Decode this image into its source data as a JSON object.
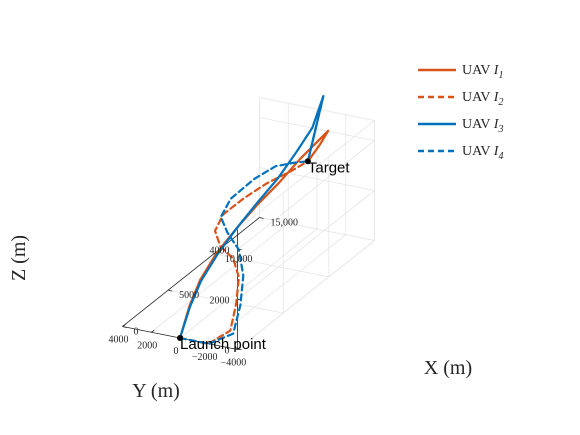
{
  "chart_data": {
    "type": "line",
    "subtype": "3d-trajectory",
    "xlabel": "X (m)",
    "ylabel": "Y (m)",
    "zlabel": "Z (m)",
    "x_ticks": [
      "0",
      "5000",
      "10,000",
      "15,000"
    ],
    "y_ticks": [
      "−4000",
      "−2000",
      "0",
      "2000",
      "4000"
    ],
    "z_ticks": [
      "0",
      "2000",
      "4000"
    ],
    "xlim": [
      0,
      15000
    ],
    "ylim": [
      -4000,
      4000
    ],
    "zlim": [
      0,
      4800
    ],
    "grid": true,
    "legend_position": "top-right",
    "annotations": [
      {
        "label": "Launch point",
        "x": 0,
        "y": 0,
        "z": 0
      },
      {
        "label": "Target",
        "x": 14000,
        "y": 0,
        "z": 3000
      }
    ],
    "series": [
      {
        "name": "UAV I1",
        "name_base": "UAV ",
        "name_var": "I",
        "name_sub": "1",
        "color": "#D95319",
        "dash": "solid",
        "points": [
          [
            0,
            0,
            0
          ],
          [
            1500,
            300,
            800
          ],
          [
            3000,
            500,
            1400
          ],
          [
            5000,
            600,
            1900
          ],
          [
            7000,
            500,
            2300
          ],
          [
            9000,
            300,
            2700
          ],
          [
            11000,
            100,
            3000
          ],
          [
            13000,
            -100,
            3400
          ],
          [
            15600,
            -400,
            3800
          ],
          [
            15000,
            -200,
            3400
          ],
          [
            14000,
            0,
            3000
          ]
        ]
      },
      {
        "name": "UAV I2",
        "name_base": "UAV ",
        "name_var": "I",
        "name_sub": "2",
        "color": "#D95319",
        "dash": "dashed",
        "points": [
          [
            0,
            0,
            0
          ],
          [
            0,
            -2000,
            0
          ],
          [
            0,
            -3500,
            700
          ],
          [
            0,
            -3900,
            1800
          ],
          [
            0,
            -4100,
            2900
          ],
          [
            0,
            -3700,
            3600
          ],
          [
            0,
            -2800,
            4000
          ],
          [
            1000,
            -1800,
            4200
          ],
          [
            3000,
            -1100,
            4200
          ],
          [
            6000,
            -600,
            3900
          ],
          [
            9000,
            -300,
            3600
          ],
          [
            12000,
            -100,
            3200
          ],
          [
            14000,
            0,
            3000
          ]
        ]
      },
      {
        "name": "UAV I3",
        "name_base": "UAV ",
        "name_var": "I",
        "name_sub": "3",
        "color": "#0072BD",
        "dash": "solid",
        "points": [
          [
            0,
            0,
            0
          ],
          [
            1500,
            250,
            800
          ],
          [
            3000,
            450,
            1350
          ],
          [
            5000,
            550,
            1850
          ],
          [
            7000,
            500,
            2300
          ],
          [
            9000,
            350,
            2750
          ],
          [
            11000,
            200,
            3150
          ],
          [
            13000,
            100,
            3700
          ],
          [
            14500,
            0,
            4200
          ],
          [
            16000,
            200,
            5000
          ],
          [
            15000,
            100,
            4000
          ],
          [
            14000,
            0,
            3000
          ]
        ]
      },
      {
        "name": "UAV I4",
        "name_base": "UAV ",
        "name_var": "I",
        "name_sub": "4",
        "color": "#0072BD",
        "dash": "dashed",
        "points": [
          [
            0,
            0,
            0
          ],
          [
            0,
            -2000,
            0
          ],
          [
            0,
            -3700,
            600
          ],
          [
            0,
            -4200,
            1800
          ],
          [
            0,
            -4400,
            3000
          ],
          [
            0,
            -4100,
            4000
          ],
          [
            0,
            -3300,
            4600
          ],
          [
            1000,
            -2200,
            4800
          ],
          [
            3500,
            -1300,
            4700
          ],
          [
            7000,
            -700,
            4400
          ],
          [
            10000,
            -300,
            4000
          ],
          [
            12500,
            -100,
            3400
          ],
          [
            14000,
            0,
            3000
          ],
          [
            15000,
            100,
            4000
          ],
          [
            16000,
            200,
            5000
          ]
        ]
      }
    ]
  }
}
